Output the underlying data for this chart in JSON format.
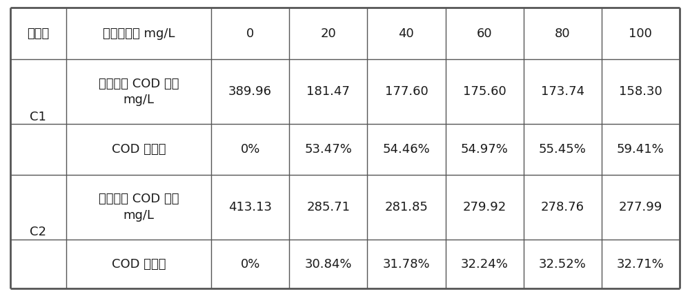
{
  "header_row": [
    "催化剂",
    "臭氧投加量 mg/L",
    "0",
    "20",
    "40",
    "60",
    "80",
    "100"
  ],
  "c1_row1_label": "出口废水 COD 浓度\nmg/L",
  "c1_row1_data": [
    "389.96",
    "181.47",
    "177.60",
    "175.60",
    "173.74",
    "158.30"
  ],
  "c1_row2_label": "COD 去除率",
  "c1_row2_data": [
    "0%",
    "53.47%",
    "54.46%",
    "54.97%",
    "55.45%",
    "59.41%"
  ],
  "c2_row1_label": "出口废水 COD 浓度\nmg/L",
  "c2_row1_data": [
    "413.13",
    "285.71",
    "281.85",
    "279.92",
    "278.76",
    "277.99"
  ],
  "c2_row2_label": "COD 去除率",
  "c2_row2_data": [
    "0%",
    "30.84%",
    "31.78%",
    "32.24%",
    "32.52%",
    "32.71%"
  ],
  "cat_c1": "C1",
  "cat_c2": "C2",
  "bg_color": "#ffffff",
  "text_color": "#1a1a1a",
  "line_color": "#555555",
  "outer_lw": 2.0,
  "inner_lw": 1.0,
  "font_size": 13,
  "fig_width": 10.0,
  "fig_height": 4.3,
  "dpi": 100
}
